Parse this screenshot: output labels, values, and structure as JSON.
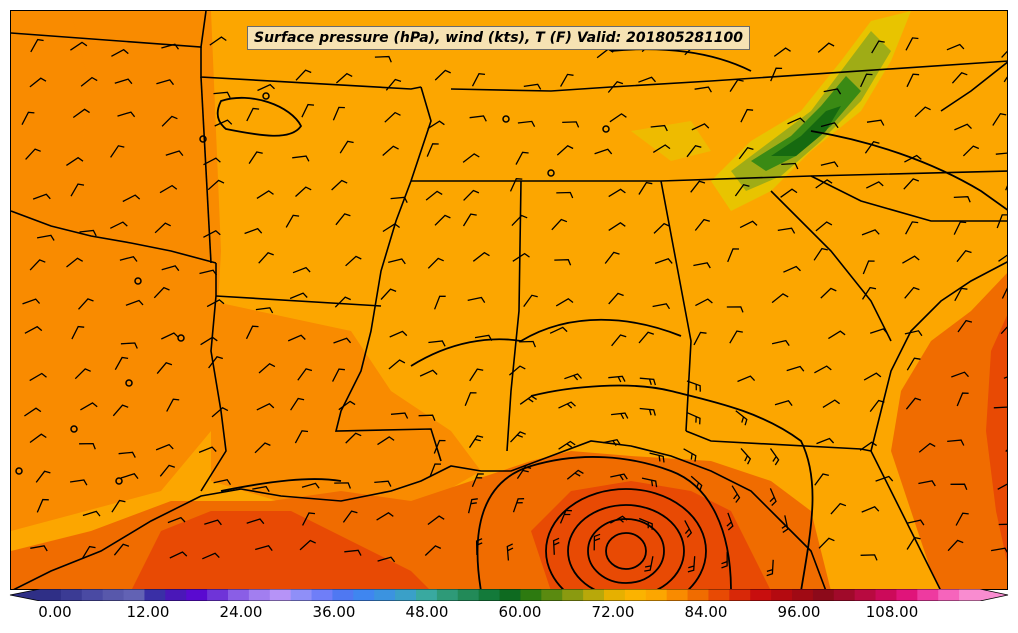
{
  "title": "Surface pressure (hPa), wind (kts), T (F) Valid: 201805281100",
  "colors": {
    "background_orange": "#fca600",
    "warm_orange": "#f98b00",
    "hot_orange": "#f06c00",
    "red_orange": "#e84a04",
    "cool_yellow": "#e8c400",
    "olive": "#9fac16",
    "green": "#3a8a14",
    "dark_green": "#166a10",
    "lines": "#000000",
    "title_box": "#f6e2b3"
  },
  "colorbar": {
    "ticks": [
      "0.00",
      "12.00",
      "24.00",
      "36.00",
      "48.00",
      "60.00",
      "72.00",
      "84.00",
      "96.00",
      "108.00"
    ],
    "colors": [
      "#2f2f86",
      "#3b3b94",
      "#4a4aa3",
      "#5858ab",
      "#6262b4",
      "#3a2fa6",
      "#4a17b8",
      "#5a0ad0",
      "#6f34d8",
      "#8a5ee6",
      "#a27ef0",
      "#b693f7",
      "#8f8ff8",
      "#6f7ef8",
      "#4f78f2",
      "#3f86f0",
      "#3b93e0",
      "#3aa0c8",
      "#39a9a0",
      "#2e9a78",
      "#228a58",
      "#137a3a",
      "#0e6a20",
      "#2d7a10",
      "#5a8a10",
      "#8a9a10",
      "#b8a80a",
      "#e6b000",
      "#fbb300",
      "#fca600",
      "#f98b00",
      "#f06c00",
      "#e84a04",
      "#d82808",
      "#c80e0e",
      "#b40a10",
      "#a00a14",
      "#8c0a1a",
      "#a00a2a",
      "#b80a40",
      "#cc0a5a",
      "#e0147a",
      "#ee3aa0",
      "#f664bc",
      "#f98cd0"
    ],
    "units": "F"
  },
  "icons": {
    "pressure": "isobar-lines",
    "wind": "wind-barbs",
    "station": "calm-circles"
  }
}
